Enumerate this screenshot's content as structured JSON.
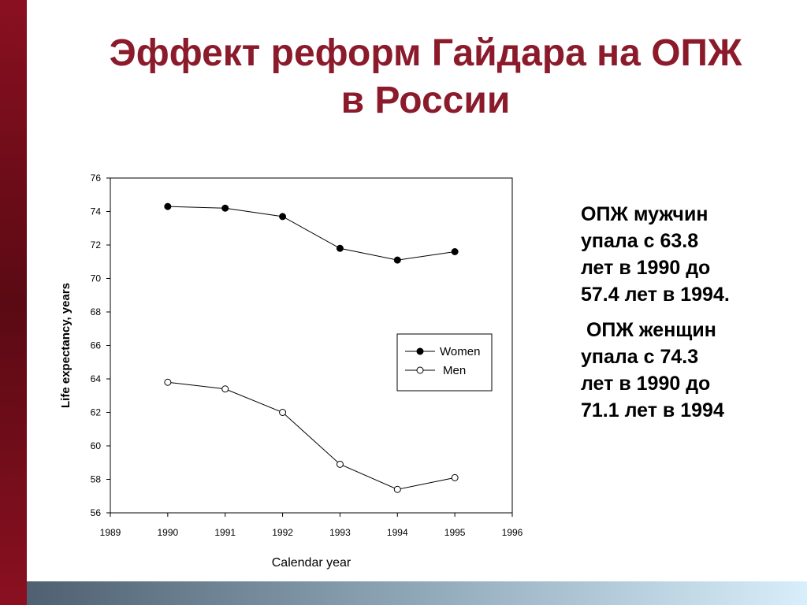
{
  "slide": {
    "title_lines": [
      "Эффект реформ Гайдара на ОПЖ",
      "в России"
    ],
    "colors": {
      "title": "#8b1a2b",
      "left_bar": "#7a0e1c",
      "bottom_bar_start": "#4f6070",
      "bottom_bar_end": "#d8eefa"
    }
  },
  "side_text": {
    "men": [
      "ОПЖ мужчин",
      "упала с 63.8",
      "лет в 1990 до",
      "57.4 лет в 1994."
    ],
    "women": [
      " ОПЖ женщин",
      "упала с 74.3",
      "лет в 1990 до",
      "71.1 лет в 1994"
    ]
  },
  "chart_data": {
    "type": "line",
    "title": "",
    "xlabel": "Calendar year",
    "ylabel": "Life expectancy, years",
    "xlim": [
      1989,
      1996
    ],
    "ylim": [
      56,
      76
    ],
    "x_ticks": [
      1989,
      1990,
      1991,
      1992,
      1993,
      1994,
      1995,
      1996
    ],
    "y_ticks": [
      56,
      58,
      60,
      62,
      64,
      66,
      68,
      70,
      72,
      74,
      76
    ],
    "grid": false,
    "legend": "right-center",
    "x": [
      1990,
      1991,
      1992,
      1993,
      1994,
      1995
    ],
    "series": [
      {
        "name": "Women",
        "marker": "filled-circle",
        "values": [
          74.3,
          74.2,
          73.7,
          71.8,
          71.1,
          71.6
        ]
      },
      {
        "name": "Men",
        "marker": "open-circle",
        "values": [
          63.8,
          63.4,
          62.0,
          58.9,
          57.4,
          58.1
        ]
      }
    ]
  }
}
